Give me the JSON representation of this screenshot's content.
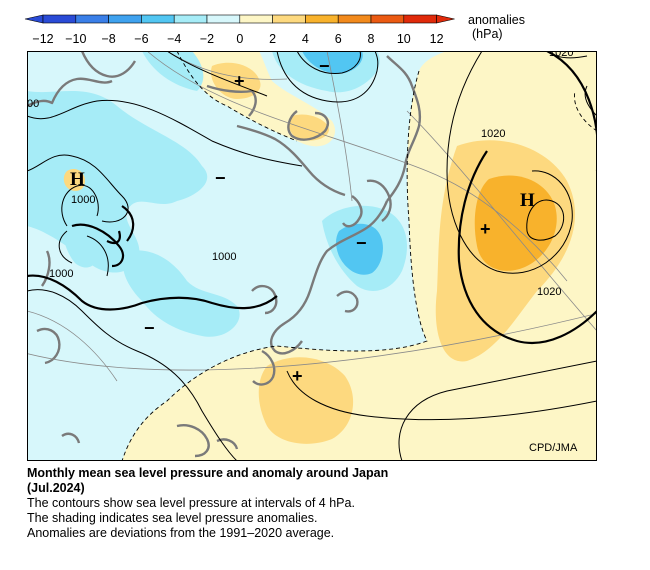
{
  "legend": {
    "title": "anomalies",
    "unit": "(hPa)",
    "ticks": [
      "−12",
      "−10",
      "−8",
      "−6",
      "−4",
      "−2",
      "0",
      "2",
      "4",
      "6",
      "8",
      "10",
      "12"
    ],
    "colors": [
      "#2a4bd6",
      "#3a7fe8",
      "#3fa2ef",
      "#52c6f2",
      "#a6ecf7",
      "#d7f7fb",
      "#fdf6c6",
      "#fdd97f",
      "#f8b22c",
      "#f28a1c",
      "#eb5a12",
      "#e02a0a"
    ]
  },
  "map": {
    "high_symbols": [
      "H",
      "H"
    ],
    "plus_symbols": [
      "+",
      "+",
      "+"
    ],
    "minus_symbols": [
      "−",
      "−",
      "−",
      "−"
    ],
    "contour_labels": [
      "00",
      "1000",
      "1000",
      "1000",
      "1020",
      "1020",
      "1020"
    ],
    "credit": "CPD/JMA"
  },
  "caption": {
    "title_line1": "Monthly mean sea level pressure and anomaly around Japan",
    "title_line2": "(Jul.2024)",
    "line1": "The contours show sea level pressure at intervals of 4 hPa.",
    "line2": "The shading indicates sea level pressure anomalies.",
    "line3": "Anomalies are deviations from the 1991–2020 average."
  }
}
